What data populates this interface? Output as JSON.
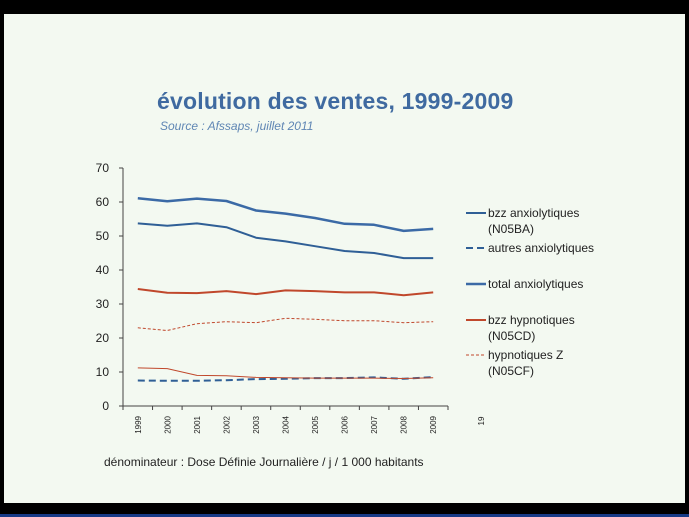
{
  "slide": {
    "title": "évolution des ventes, 1999-2009",
    "subtitle": "Source : Afssaps, juillet 2011",
    "footnote": "dénominateur : Dose Définie Journalière / j / 1 000 habitants",
    "stray_mark": "19"
  },
  "chart_data": {
    "type": "line",
    "title": "",
    "xlabel": "",
    "ylabel": "",
    "x": [
      "1999",
      "2000",
      "2001",
      "2002",
      "2003",
      "2004",
      "2005",
      "2006",
      "2007",
      "2008",
      "2009"
    ],
    "ylim": [
      0,
      70
    ],
    "yticks": [
      0,
      10,
      20,
      30,
      40,
      50,
      60,
      70
    ],
    "grid": false,
    "legend_position": "right",
    "series": [
      {
        "name": "bzz anxiolytiques (N05BA)",
        "color": "#2f5f96",
        "style": "solid",
        "width": 2,
        "values": [
          53.7,
          53.0,
          53.7,
          52.6,
          49.5,
          48.4,
          47.0,
          45.6,
          45.0,
          43.5,
          43.5
        ]
      },
      {
        "name": "autres anxiolytiques",
        "color": "#2f5f96",
        "style": "dashed",
        "width": 2,
        "values": [
          7.5,
          7.4,
          7.4,
          7.6,
          7.9,
          8.0,
          8.2,
          8.2,
          8.4,
          8.0,
          8.5
        ]
      },
      {
        "name": "total anxiolytiques",
        "color": "#3b6aa6",
        "style": "solid",
        "width": 2.5,
        "values": [
          61.1,
          60.2,
          61.0,
          60.3,
          57.5,
          56.6,
          55.3,
          53.6,
          53.3,
          51.5,
          52.1
        ]
      },
      {
        "name": "bzz hypnotiques (N05CD)",
        "color": "#c0482c",
        "style": "solid",
        "width": 2,
        "values": [
          34.4,
          33.3,
          33.2,
          33.8,
          32.9,
          34.0,
          33.8,
          33.4,
          33.4,
          32.6,
          33.4
        ]
      },
      {
        "name": "hypnotiques Z (N05CF)",
        "color": "#c0482c",
        "style": "dashed",
        "width": 1,
        "values": [
          23.0,
          22.2,
          24.2,
          24.8,
          24.5,
          25.8,
          25.5,
          25.1,
          25.1,
          24.5,
          24.8
        ]
      },
      {
        "name": "",
        "color": "#c0482c",
        "style": "solid",
        "width": 1,
        "values": [
          11.2,
          11.0,
          9.0,
          8.9,
          8.4,
          8.3,
          8.2,
          8.2,
          8.2,
          8.1,
          8.3
        ]
      }
    ],
    "legend": [
      {
        "lines": [
          "bzz anxiolytiques",
          "(N05BA)"
        ],
        "series": 0
      },
      {
        "lines": [
          "autres anxiolytiques"
        ],
        "series": 1
      },
      {
        "lines": [
          "total anxiolytiques"
        ],
        "series": 2
      },
      {
        "lines": [
          "bzz hypnotiques",
          "(N05CD)"
        ],
        "series": 3
      },
      {
        "lines": [
          "hypnotiques Z",
          "(N05CF)"
        ],
        "series": 4
      }
    ]
  }
}
